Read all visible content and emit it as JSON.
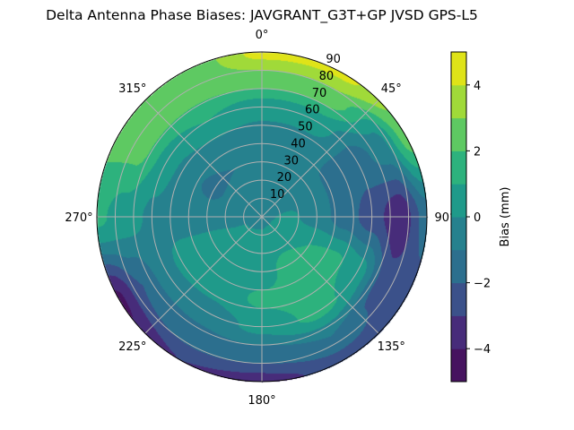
{
  "chart_data": {
    "type": "heatmap",
    "projection": "polar",
    "title": "Delta Antenna Phase Biases: JAVGRANT_G3T+GP JVSD GPS-L5",
    "theta_zero": "north",
    "theta_direction": "clockwise",
    "theta_ticks": [
      "0°",
      "45°",
      "90°",
      "135°",
      "180°",
      "225°",
      "270°",
      "315°"
    ],
    "theta_tick_values": [
      0,
      45,
      90,
      135,
      180,
      225,
      270,
      315
    ],
    "r_ticks": [
      "10",
      "20",
      "30",
      "40",
      "50",
      "60",
      "70",
      "80",
      "90"
    ],
    "r_tick_values": [
      10,
      20,
      30,
      40,
      50,
      60,
      70,
      80,
      90
    ],
    "rlim": [
      0,
      90
    ],
    "grid": true,
    "colorbar": {
      "label": "Bias (mm)",
      "levels": [
        -5,
        -4,
        -3,
        -2,
        -1,
        0,
        1,
        2,
        3,
        4,
        5
      ],
      "colormap": "viridis",
      "colors": [
        "#481467",
        "#472d7b",
        "#3b528b",
        "#2c728e",
        "#21918c",
        "#27ad81",
        "#5cc863",
        "#aadc32",
        "#dde318",
        "#fde725"
      ],
      "bin_colors": [
        "#46135f",
        "#472c7a",
        "#3b518a",
        "#2c6f8e",
        "#26818e",
        "#1f9a8a",
        "#2db27d",
        "#5ec962",
        "#a0da39",
        "#dfe318"
      ],
      "ticks": [
        4,
        2,
        0,
        -2,
        -4
      ],
      "tick_labels": [
        "4",
        "2",
        "0",
        "−2",
        "−4"
      ],
      "placement": "right"
    },
    "grid_azimuths": [
      0,
      30,
      60,
      90,
      120,
      150,
      180,
      210,
      240,
      270,
      300,
      330
    ],
    "grid_zenith": [
      0,
      15,
      30,
      45,
      60,
      75,
      90
    ],
    "values": [
      [
        -0.2,
        -0.5,
        -0.8,
        -0.5,
        0.5,
        2.5,
        4.3
      ],
      [
        -0.2,
        -0.3,
        -0.8,
        -0.5,
        0.5,
        2.5,
        4.2
      ],
      [
        -0.2,
        -0.3,
        -0.8,
        -1.2,
        -1.5,
        -0.5,
        2.5
      ],
      [
        -0.2,
        0.2,
        -0.5,
        -1.5,
        -2.5,
        -3.8,
        -1.5
      ],
      [
        -0.2,
        0.5,
        1.0,
        1.2,
        0.5,
        -2.5,
        -2.5
      ],
      [
        -0.2,
        0.5,
        1.5,
        1.5,
        1.3,
        -1.0,
        -2.5
      ],
      [
        -0.2,
        0.3,
        0.5,
        1.2,
        0.3,
        -1.5,
        -3.5
      ],
      [
        -0.2,
        0.2,
        0.5,
        0.5,
        -0.5,
        -1.5,
        -3.0
      ],
      [
        -0.2,
        0.1,
        0.5,
        0.5,
        -0.3,
        -2.0,
        -4.2
      ],
      [
        -0.2,
        -0.3,
        -0.5,
        -0.5,
        -0.2,
        0.5,
        1.2
      ],
      [
        -0.2,
        -0.5,
        -1.2,
        -0.8,
        0.5,
        2.3,
        2.3
      ],
      [
        -0.2,
        -0.5,
        -1.0,
        -0.3,
        1.0,
        2.2,
        2.0
      ]
    ]
  }
}
